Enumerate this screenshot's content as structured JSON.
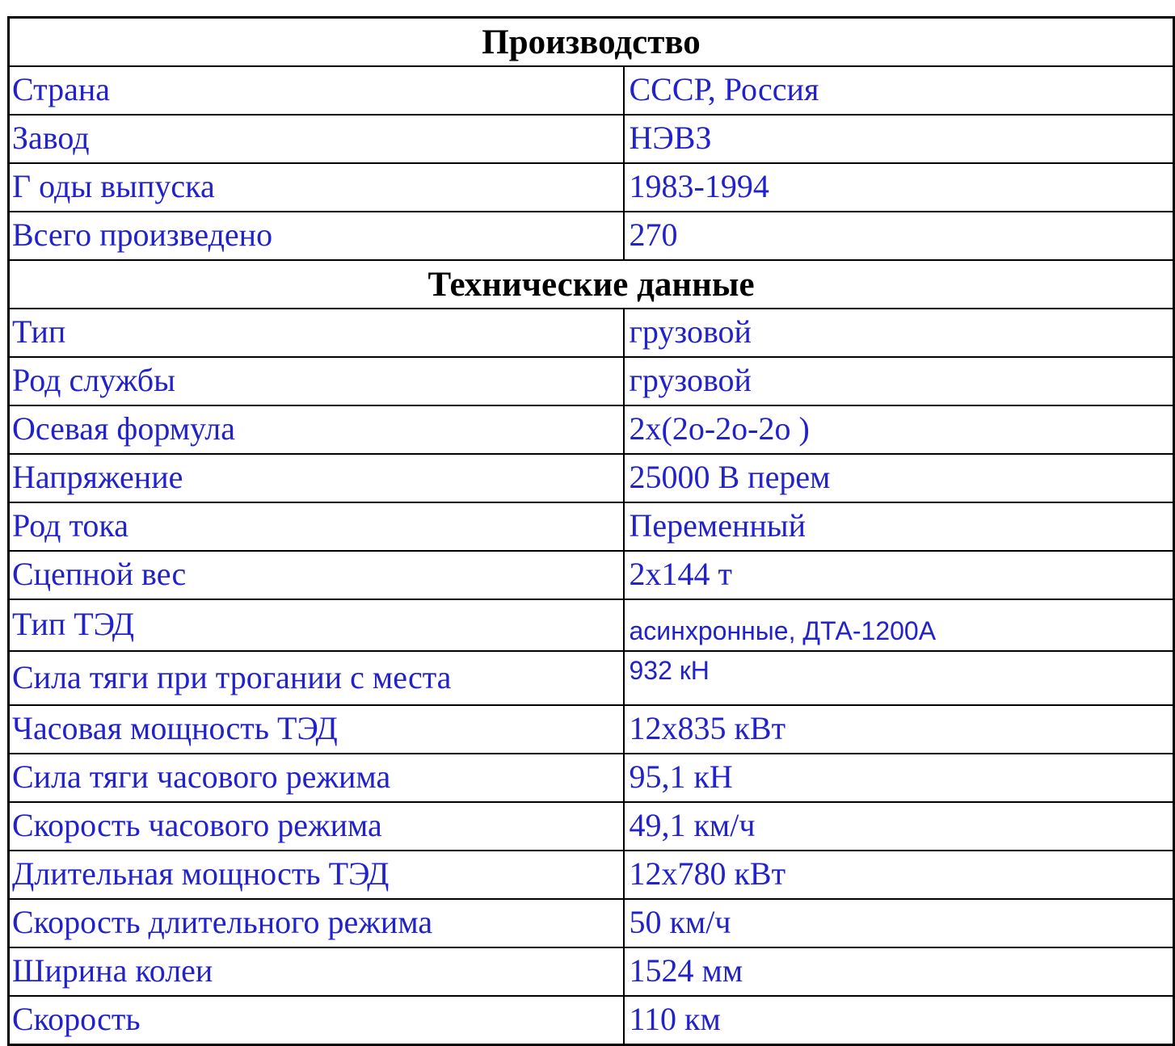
{
  "table": {
    "colors": {
      "text_blue": "#2222CC",
      "header_text": "#000000",
      "border": "#000000",
      "background": "#ffffff"
    },
    "sections": [
      {
        "header": "Производство",
        "rows": [
          {
            "label": "Страна",
            "value": "СССР, Россия"
          },
          {
            "label": "Завод",
            "value": "НЭВЗ"
          },
          {
            "label": "Г оды выпуска",
            "value": "1983-1994"
          },
          {
            "label": "Всего произведено",
            "value": "270"
          }
        ]
      },
      {
        "header": "Технические данные",
        "rows": [
          {
            "label": "Тип",
            "value": "грузовой"
          },
          {
            "label": "Род службы",
            "value": "грузовой"
          },
          {
            "label": "Осевая формула",
            "value": "2х(2о-2о-2о )"
          },
          {
            "label": "Напряжение",
            "value": "25000 В перем"
          },
          {
            "label": "Род тока",
            "value": "Переменный"
          },
          {
            "label": "Сцепной вес",
            "value": "2х144 т"
          },
          {
            "label": "Тип ТЭД",
            "value": "асинхронные, ДТА-1200А",
            "value_style": "sans-bottom"
          },
          {
            "label": "Сила тяги при трогании с места",
            "value": "932 кН",
            "value_style": "sans-top"
          },
          {
            "label": "Часовая мощность ТЭД",
            "value": "12х835 кВт"
          },
          {
            "label": "Сила тяги часового режима",
            "value": "95,1 кН"
          },
          {
            "label": "Скорость часового режима",
            "value": "49,1 км/ч"
          },
          {
            "label": "Длительная мощность ТЭД",
            "value": "12х780 кВт"
          },
          {
            "label": "Скорость длительного режима",
            "value": "50 км/ч"
          },
          {
            "label": "Ширина колеи",
            "value": "1524 мм"
          },
          {
            "label": "Скорость",
            "value": "110 км"
          }
        ]
      }
    ]
  }
}
